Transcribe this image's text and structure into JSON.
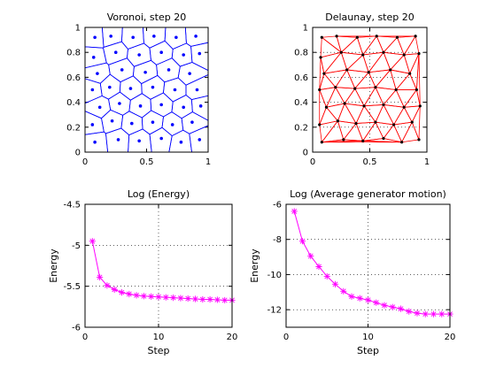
{
  "figure": {
    "background": "#ffffff"
  },
  "chart_data": [
    {
      "type": "scatter",
      "title": "Voronoi, step 20",
      "xlabel": "",
      "ylabel": "",
      "xlim": [
        0,
        1
      ],
      "ylim": [
        0,
        1
      ],
      "xticks": [
        0,
        0.5,
        1
      ],
      "xtick_labels": [
        "0",
        "0.5",
        "1"
      ],
      "yticks": [
        0,
        0.2,
        0.4,
        0.6,
        0.8,
        1
      ],
      "ytick_labels": [
        "0",
        "0.2",
        "0.4",
        "0.6",
        "0.8",
        "1"
      ],
      "grid": false,
      "color": "#0000ff",
      "marker": "dot",
      "cells": "voronoi",
      "points": [
        [
          0.08,
          0.92
        ],
        [
          0.21,
          0.93
        ],
        [
          0.39,
          0.92
        ],
        [
          0.56,
          0.93
        ],
        [
          0.74,
          0.92
        ],
        [
          0.9,
          0.93
        ],
        [
          0.07,
          0.76
        ],
        [
          0.25,
          0.8
        ],
        [
          0.44,
          0.78
        ],
        [
          0.62,
          0.8
        ],
        [
          0.8,
          0.78
        ],
        [
          0.93,
          0.79
        ],
        [
          0.1,
          0.63
        ],
        [
          0.3,
          0.66
        ],
        [
          0.49,
          0.64
        ],
        [
          0.68,
          0.66
        ],
        [
          0.85,
          0.63
        ],
        [
          0.06,
          0.5
        ],
        [
          0.2,
          0.52
        ],
        [
          0.37,
          0.51
        ],
        [
          0.55,
          0.52
        ],
        [
          0.73,
          0.5
        ],
        [
          0.91,
          0.5
        ],
        [
          0.12,
          0.36
        ],
        [
          0.28,
          0.39
        ],
        [
          0.45,
          0.37
        ],
        [
          0.62,
          0.38
        ],
        [
          0.8,
          0.36
        ],
        [
          0.94,
          0.37
        ],
        [
          0.06,
          0.22
        ],
        [
          0.22,
          0.25
        ],
        [
          0.38,
          0.23
        ],
        [
          0.55,
          0.24
        ],
        [
          0.71,
          0.22
        ],
        [
          0.87,
          0.24
        ],
        [
          0.08,
          0.08
        ],
        [
          0.27,
          0.1
        ],
        [
          0.44,
          0.09
        ],
        [
          0.62,
          0.11
        ],
        [
          0.78,
          0.08
        ],
        [
          0.93,
          0.1
        ]
      ]
    },
    {
      "type": "scatter",
      "title": "Delaunay, step 20",
      "xlabel": "",
      "ylabel": "",
      "xlim": [
        0,
        1
      ],
      "ylim": [
        0,
        1
      ],
      "xticks": [
        0,
        0.5,
        1
      ],
      "xtick_labels": [
        "0",
        "0.5",
        "1"
      ],
      "yticks": [
        0,
        0.2,
        0.4,
        0.6,
        0.8,
        1
      ],
      "ytick_labels": [
        "0",
        "0.2",
        "0.4",
        "0.6",
        "0.8",
        "1"
      ],
      "grid": true,
      "color": "#000000",
      "edge_color": "#ff0000",
      "marker": "dot",
      "cells": "delaunay",
      "points": [
        [
          0.08,
          0.92
        ],
        [
          0.21,
          0.93
        ],
        [
          0.39,
          0.92
        ],
        [
          0.56,
          0.93
        ],
        [
          0.74,
          0.92
        ],
        [
          0.9,
          0.93
        ],
        [
          0.07,
          0.76
        ],
        [
          0.25,
          0.8
        ],
        [
          0.44,
          0.78
        ],
        [
          0.62,
          0.8
        ],
        [
          0.8,
          0.78
        ],
        [
          0.93,
          0.79
        ],
        [
          0.1,
          0.63
        ],
        [
          0.3,
          0.66
        ],
        [
          0.49,
          0.64
        ],
        [
          0.68,
          0.66
        ],
        [
          0.85,
          0.63
        ],
        [
          0.06,
          0.5
        ],
        [
          0.2,
          0.52
        ],
        [
          0.37,
          0.51
        ],
        [
          0.55,
          0.52
        ],
        [
          0.73,
          0.5
        ],
        [
          0.91,
          0.5
        ],
        [
          0.12,
          0.36
        ],
        [
          0.28,
          0.39
        ],
        [
          0.45,
          0.37
        ],
        [
          0.62,
          0.38
        ],
        [
          0.8,
          0.36
        ],
        [
          0.94,
          0.37
        ],
        [
          0.06,
          0.22
        ],
        [
          0.22,
          0.25
        ],
        [
          0.38,
          0.23
        ],
        [
          0.55,
          0.24
        ],
        [
          0.71,
          0.22
        ],
        [
          0.87,
          0.24
        ],
        [
          0.08,
          0.08
        ],
        [
          0.27,
          0.1
        ],
        [
          0.44,
          0.09
        ],
        [
          0.62,
          0.11
        ],
        [
          0.78,
          0.08
        ],
        [
          0.93,
          0.1
        ]
      ]
    },
    {
      "type": "line",
      "title": "Log (Energy)",
      "xlabel": "Step",
      "ylabel": "Energy",
      "xlim": [
        0,
        20
      ],
      "ylim": [
        -6,
        -4.5
      ],
      "xticks": [
        0,
        10,
        20
      ],
      "xtick_labels": [
        "0",
        "10",
        "20"
      ],
      "yticks": [
        -6,
        -5.5,
        -5,
        -4.5
      ],
      "ytick_labels": [
        "-6",
        "-5.5",
        "-5",
        "-4.5"
      ],
      "grid": true,
      "color": "#ff00ff",
      "marker": "star",
      "x": [
        1,
        2,
        3,
        4,
        5,
        6,
        7,
        8,
        9,
        10,
        11,
        12,
        13,
        14,
        15,
        16,
        17,
        18,
        19,
        20
      ],
      "values": [
        -4.95,
        -5.39,
        -5.49,
        -5.54,
        -5.575,
        -5.595,
        -5.61,
        -5.62,
        -5.625,
        -5.63,
        -5.635,
        -5.64,
        -5.645,
        -5.65,
        -5.655,
        -5.66,
        -5.66,
        -5.665,
        -5.67,
        -5.67
      ]
    },
    {
      "type": "line",
      "title": "Log (Average generator motion)",
      "xlabel": "Step",
      "ylabel": "Energy",
      "xlim": [
        0,
        20
      ],
      "ylim": [
        -13,
        -6
      ],
      "xticks": [
        0,
        10,
        20
      ],
      "xtick_labels": [
        "0",
        "10",
        "20"
      ],
      "yticks": [
        -12,
        -10,
        -8,
        -6
      ],
      "ytick_labels": [
        "-12",
        "-10",
        "-8",
        "-6"
      ],
      "grid": true,
      "color": "#ff00ff",
      "marker": "star",
      "x": [
        1,
        2,
        3,
        4,
        5,
        6,
        7,
        8,
        9,
        10,
        11,
        12,
        13,
        14,
        15,
        16,
        17,
        18,
        19,
        20
      ],
      "values": [
        -6.4,
        -8.1,
        -8.95,
        -9.55,
        -10.1,
        -10.55,
        -10.95,
        -11.25,
        -11.35,
        -11.45,
        -11.6,
        -11.75,
        -11.85,
        -11.95,
        -12.1,
        -12.2,
        -12.25,
        -12.25,
        -12.25,
        -12.25
      ]
    }
  ]
}
